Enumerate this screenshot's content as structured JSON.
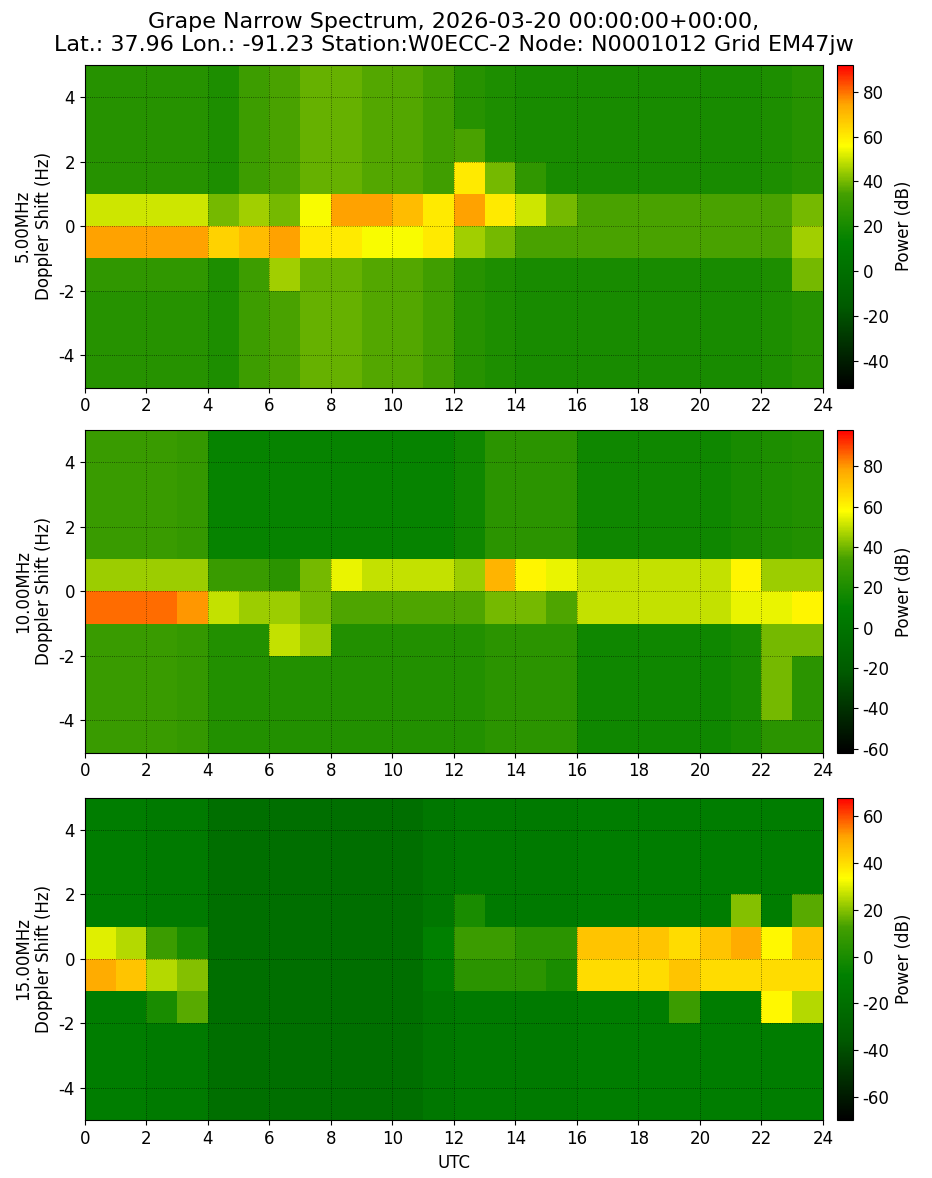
{
  "chart_data": [
    {
      "type": "heatmap",
      "title": "Grape Narrow Spectrum, 2026-03-20 00:00:00+00:00,\nLat.: 37.96 Lon.: -91.23 Station:W0ECC-2 Node: N0001012 Grid EM47jw",
      "y_label": "5.00MHz\nDoppler Shift (Hz)",
      "x": [
        0,
        1,
        2,
        3,
        4,
        5,
        6,
        7,
        8,
        9,
        10,
        11,
        12,
        13,
        14,
        15,
        16,
        17,
        18,
        19,
        20,
        21,
        22,
        23,
        24
      ],
      "y": [
        -5,
        -4,
        -3,
        -2,
        -1,
        0,
        1,
        2,
        3,
        4,
        5
      ],
      "cells": [
        [
          25,
          25,
          25,
          25,
          22,
          32,
          35,
          38,
          38,
          36,
          36,
          33,
          25,
          22,
          20,
          20,
          20,
          20,
          20,
          20,
          20,
          20,
          22,
          25
        ],
        [
          25,
          25,
          25,
          25,
          22,
          32,
          35,
          38,
          38,
          36,
          36,
          33,
          25,
          22,
          20,
          20,
          20,
          20,
          20,
          20,
          20,
          20,
          22,
          25
        ],
        [
          25,
          25,
          25,
          25,
          22,
          32,
          35,
          38,
          38,
          36,
          36,
          33,
          25,
          22,
          20,
          20,
          20,
          20,
          20,
          20,
          20,
          20,
          22,
          25
        ],
        [
          28,
          28,
          28,
          28,
          22,
          32,
          45,
          38,
          38,
          36,
          36,
          33,
          25,
          22,
          20,
          20,
          20,
          20,
          20,
          20,
          20,
          20,
          22,
          40
        ],
        [
          75,
          75,
          75,
          75,
          65,
          70,
          75,
          60,
          60,
          55,
          55,
          60,
          45,
          40,
          35,
          35,
          35,
          35,
          35,
          35,
          35,
          35,
          35,
          45
        ],
        [
          50,
          50,
          50,
          50,
          40,
          45,
          40,
          55,
          75,
          75,
          70,
          60,
          75,
          60,
          50,
          40,
          35,
          35,
          35,
          35,
          35,
          35,
          35,
          40
        ],
        [
          25,
          25,
          25,
          25,
          22,
          32,
          35,
          38,
          38,
          36,
          36,
          33,
          60,
          40,
          28,
          20,
          20,
          20,
          20,
          20,
          20,
          20,
          22,
          25
        ],
        [
          25,
          25,
          25,
          25,
          22,
          32,
          35,
          38,
          38,
          36,
          36,
          33,
          35,
          22,
          20,
          20,
          20,
          20,
          20,
          20,
          20,
          20,
          22,
          25
        ],
        [
          25,
          25,
          25,
          25,
          22,
          32,
          35,
          38,
          38,
          36,
          36,
          33,
          25,
          22,
          20,
          20,
          20,
          20,
          20,
          20,
          20,
          20,
          22,
          25
        ],
        [
          25,
          25,
          25,
          25,
          22,
          32,
          35,
          38,
          38,
          36,
          36,
          33,
          25,
          22,
          20,
          20,
          20,
          20,
          20,
          20,
          20,
          20,
          22,
          25
        ]
      ],
      "xlim": [
        0,
        24
      ],
      "ylim": [
        -5,
        5
      ],
      "xticks": [
        0,
        2,
        4,
        6,
        8,
        10,
        12,
        14,
        16,
        18,
        20,
        22,
        24
      ],
      "yticks": [
        -4,
        -2,
        0,
        2,
        4
      ],
      "grid": true,
      "colorbar": {
        "label": "Power (dB)",
        "range": [
          -52,
          92
        ],
        "ticks": [
          -40,
          -20,
          0,
          20,
          40,
          60,
          80
        ]
      }
    },
    {
      "type": "heatmap",
      "y_label": "10.00MHz\nDoppler Shift (Hz)",
      "x": [
        0,
        1,
        2,
        3,
        4,
        5,
        6,
        7,
        8,
        9,
        10,
        11,
        12,
        13,
        14,
        15,
        16,
        17,
        18,
        19,
        20,
        21,
        22,
        23,
        24
      ],
      "y": [
        -5,
        -4,
        -3,
        -2,
        -1,
        0,
        1,
        2,
        3,
        4,
        5
      ],
      "cells": [
        [
          30,
          30,
          30,
          28,
          22,
          22,
          22,
          22,
          22,
          22,
          22,
          22,
          22,
          25,
          25,
          25,
          15,
          15,
          15,
          15,
          15,
          18,
          25,
          25
        ],
        [
          30,
          30,
          30,
          28,
          22,
          22,
          22,
          22,
          22,
          22,
          22,
          22,
          22,
          25,
          25,
          25,
          15,
          15,
          15,
          15,
          15,
          18,
          40,
          25
        ],
        [
          30,
          30,
          30,
          28,
          22,
          22,
          22,
          22,
          22,
          22,
          22,
          22,
          22,
          25,
          25,
          25,
          15,
          15,
          15,
          15,
          15,
          18,
          40,
          25
        ],
        [
          30,
          30,
          30,
          28,
          22,
          22,
          50,
          45,
          22,
          22,
          22,
          22,
          22,
          25,
          25,
          25,
          15,
          15,
          15,
          15,
          15,
          18,
          40,
          40
        ],
        [
          85,
          85,
          85,
          80,
          50,
          45,
          45,
          40,
          35,
          35,
          35,
          35,
          35,
          40,
          40,
          35,
          50,
          50,
          50,
          50,
          50,
          55,
          55,
          60
        ],
        [
          45,
          45,
          45,
          45,
          30,
          30,
          25,
          40,
          55,
          50,
          50,
          50,
          45,
          75,
          60,
          55,
          50,
          50,
          50,
          50,
          50,
          60,
          45,
          45
        ],
        [
          30,
          30,
          30,
          28,
          12,
          12,
          12,
          12,
          12,
          12,
          12,
          12,
          15,
          25,
          25,
          25,
          15,
          15,
          15,
          15,
          15,
          18,
          20,
          22
        ],
        [
          30,
          30,
          30,
          28,
          12,
          12,
          12,
          12,
          12,
          12,
          12,
          12,
          15,
          25,
          25,
          25,
          15,
          15,
          15,
          15,
          15,
          18,
          20,
          22
        ],
        [
          30,
          30,
          30,
          28,
          12,
          12,
          12,
          12,
          12,
          12,
          12,
          12,
          15,
          25,
          25,
          25,
          15,
          15,
          15,
          15,
          15,
          18,
          20,
          22
        ],
        [
          30,
          30,
          30,
          28,
          12,
          12,
          12,
          12,
          12,
          12,
          12,
          12,
          15,
          25,
          25,
          25,
          15,
          15,
          15,
          15,
          15,
          18,
          20,
          22
        ]
      ],
      "xlim": [
        0,
        24
      ],
      "ylim": [
        -5,
        5
      ],
      "xticks": [
        0,
        2,
        4,
        6,
        8,
        10,
        12,
        14,
        16,
        18,
        20,
        22,
        24
      ],
      "yticks": [
        -4,
        -2,
        0,
        2,
        4
      ],
      "grid": true,
      "colorbar": {
        "label": "Power (dB)",
        "range": [
          -62,
          98
        ],
        "ticks": [
          -60,
          -40,
          -20,
          0,
          20,
          40,
          60,
          80
        ]
      }
    },
    {
      "type": "heatmap",
      "y_label": "15.00MHz\nDoppler Shift (Hz)",
      "x_label": "UTC",
      "x": [
        0,
        1,
        2,
        3,
        4,
        5,
        6,
        7,
        8,
        9,
        10,
        11,
        12,
        13,
        14,
        15,
        16,
        17,
        18,
        19,
        20,
        21,
        22,
        23,
        24
      ],
      "y": [
        -5,
        -4,
        -3,
        -2,
        -1,
        0,
        1,
        2,
        3,
        4,
        5
      ],
      "cells": [
        [
          -10,
          -10,
          -12,
          -12,
          -20,
          -20,
          -20,
          -20,
          -20,
          -20,
          -20,
          -15,
          -12,
          -12,
          -12,
          -12,
          -10,
          -10,
          -10,
          -10,
          -10,
          -10,
          -10,
          -10
        ],
        [
          -10,
          -10,
          -12,
          -12,
          -20,
          -20,
          -20,
          -20,
          -20,
          -20,
          -20,
          -15,
          -12,
          -12,
          -12,
          -12,
          -10,
          -10,
          -10,
          -10,
          -10,
          -10,
          -10,
          -10
        ],
        [
          -10,
          -10,
          -12,
          -12,
          -20,
          -20,
          -20,
          -20,
          -20,
          -20,
          -20,
          -15,
          -12,
          -12,
          -12,
          -12,
          -10,
          -10,
          -10,
          -10,
          -10,
          -10,
          -10,
          -10
        ],
        [
          -10,
          -10,
          0,
          15,
          -20,
          -20,
          -20,
          -20,
          -20,
          -20,
          -20,
          -15,
          -12,
          -12,
          -12,
          -12,
          -10,
          -10,
          -10,
          10,
          -10,
          -10,
          35,
          25
        ],
        [
          50,
          45,
          25,
          20,
          -20,
          -20,
          -20,
          -20,
          -20,
          -20,
          -20,
          -10,
          5,
          5,
          5,
          0,
          40,
          40,
          40,
          45,
          40,
          40,
          40,
          40
        ],
        [
          30,
          25,
          10,
          0,
          -20,
          -20,
          -20,
          -20,
          -20,
          -20,
          -20,
          -8,
          10,
          10,
          5,
          5,
          45,
          45,
          45,
          40,
          45,
          50,
          35,
          45
        ],
        [
          -10,
          -10,
          -12,
          -12,
          -20,
          -20,
          -20,
          -20,
          -20,
          -20,
          -20,
          -15,
          0,
          -12,
          -12,
          -12,
          -10,
          -10,
          -10,
          -10,
          -10,
          20,
          -10,
          15
        ],
        [
          -10,
          -10,
          -12,
          -12,
          -20,
          -20,
          -20,
          -20,
          -20,
          -20,
          -20,
          -15,
          -12,
          -12,
          -12,
          -12,
          -10,
          -10,
          -10,
          -10,
          -10,
          -10,
          -10,
          -10
        ],
        [
          -10,
          -10,
          -12,
          -12,
          -20,
          -20,
          -20,
          -20,
          -20,
          -20,
          -20,
          -15,
          -12,
          -12,
          -12,
          -12,
          -10,
          -10,
          -10,
          -10,
          -10,
          -10,
          -10,
          -10
        ],
        [
          -10,
          -10,
          -12,
          -12,
          -20,
          -20,
          -20,
          -20,
          -20,
          -20,
          -20,
          -15,
          -12,
          -12,
          -12,
          -12,
          -10,
          -10,
          -10,
          -10,
          -10,
          -10,
          -10,
          -10
        ]
      ],
      "xlim": [
        0,
        24
      ],
      "ylim": [
        -5,
        5
      ],
      "xticks": [
        0,
        2,
        4,
        6,
        8,
        10,
        12,
        14,
        16,
        18,
        20,
        22,
        24
      ],
      "yticks": [
        -4,
        -2,
        0,
        2,
        4
      ],
      "grid": true,
      "colorbar": {
        "label": "Power (dB)",
        "range": [
          -70,
          68
        ],
        "ticks": [
          -60,
          -40,
          -20,
          0,
          20,
          40,
          60
        ]
      }
    }
  ]
}
